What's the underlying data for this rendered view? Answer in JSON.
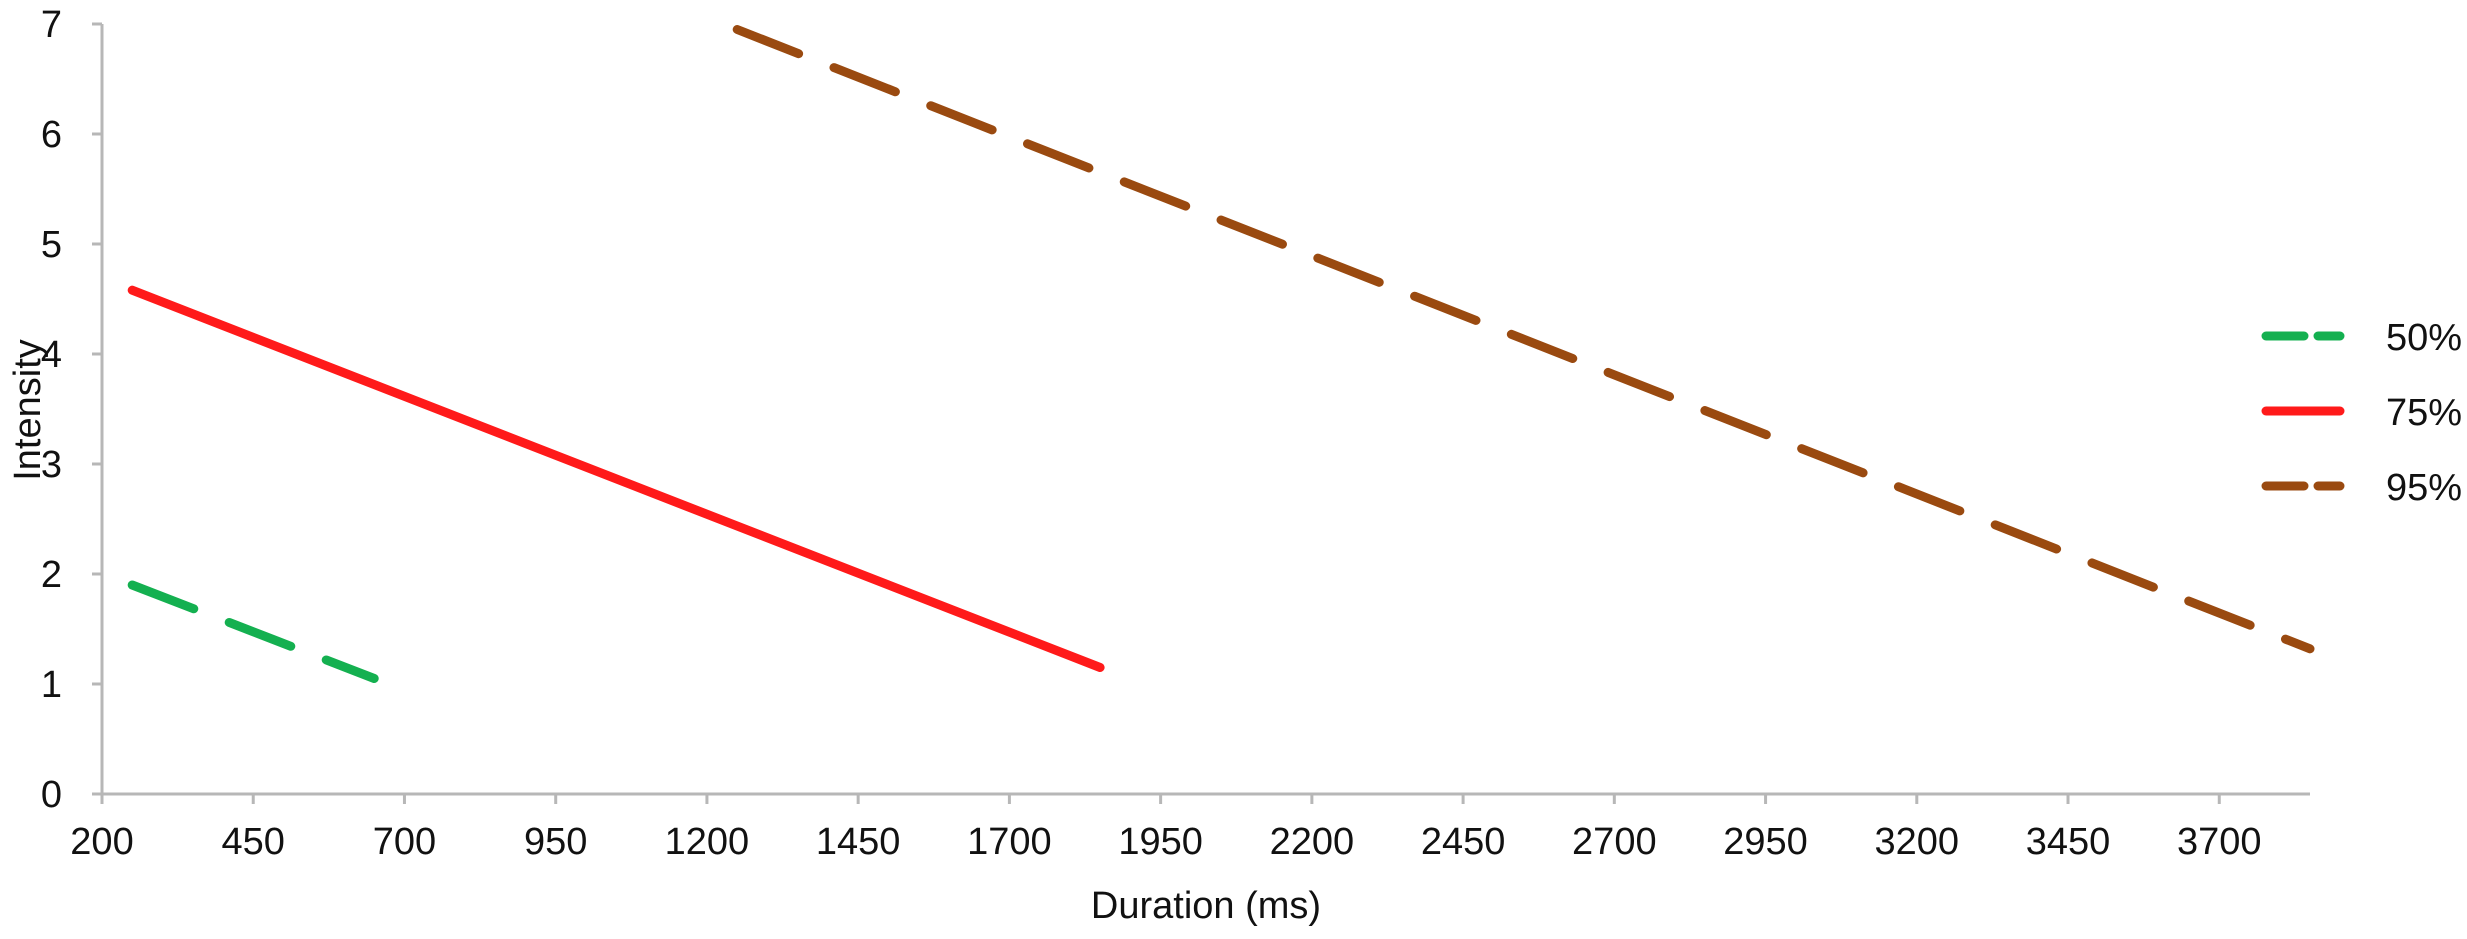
{
  "chart_data": {
    "type": "line",
    "xlabel": "Duration (ms)",
    "ylabel": "Intensity",
    "xlim": [
      200,
      3850
    ],
    "ylim": [
      0,
      7
    ],
    "xticks": [
      200,
      450,
      700,
      950,
      1200,
      1450,
      1700,
      1950,
      2200,
      2450,
      2700,
      2950,
      3200,
      3450,
      3700
    ],
    "yticks": [
      0,
      1,
      2,
      3,
      4,
      5,
      6,
      7
    ],
    "grid": false,
    "legend_position": "right",
    "series": [
      {
        "name": "50%",
        "color": "#14b050",
        "dash": "long-dash",
        "x": [
          250,
          650
        ],
        "y": [
          1.9,
          1.05
        ]
      },
      {
        "name": "75%",
        "color": "#ff1a1a",
        "dash": "solid",
        "x": [
          250,
          1850
        ],
        "y": [
          4.58,
          1.15
        ]
      },
      {
        "name": "95%",
        "color": "#9a4a10",
        "dash": "long-dash",
        "x": [
          1250,
          3850
        ],
        "y": [
          6.95,
          1.32
        ]
      }
    ]
  }
}
